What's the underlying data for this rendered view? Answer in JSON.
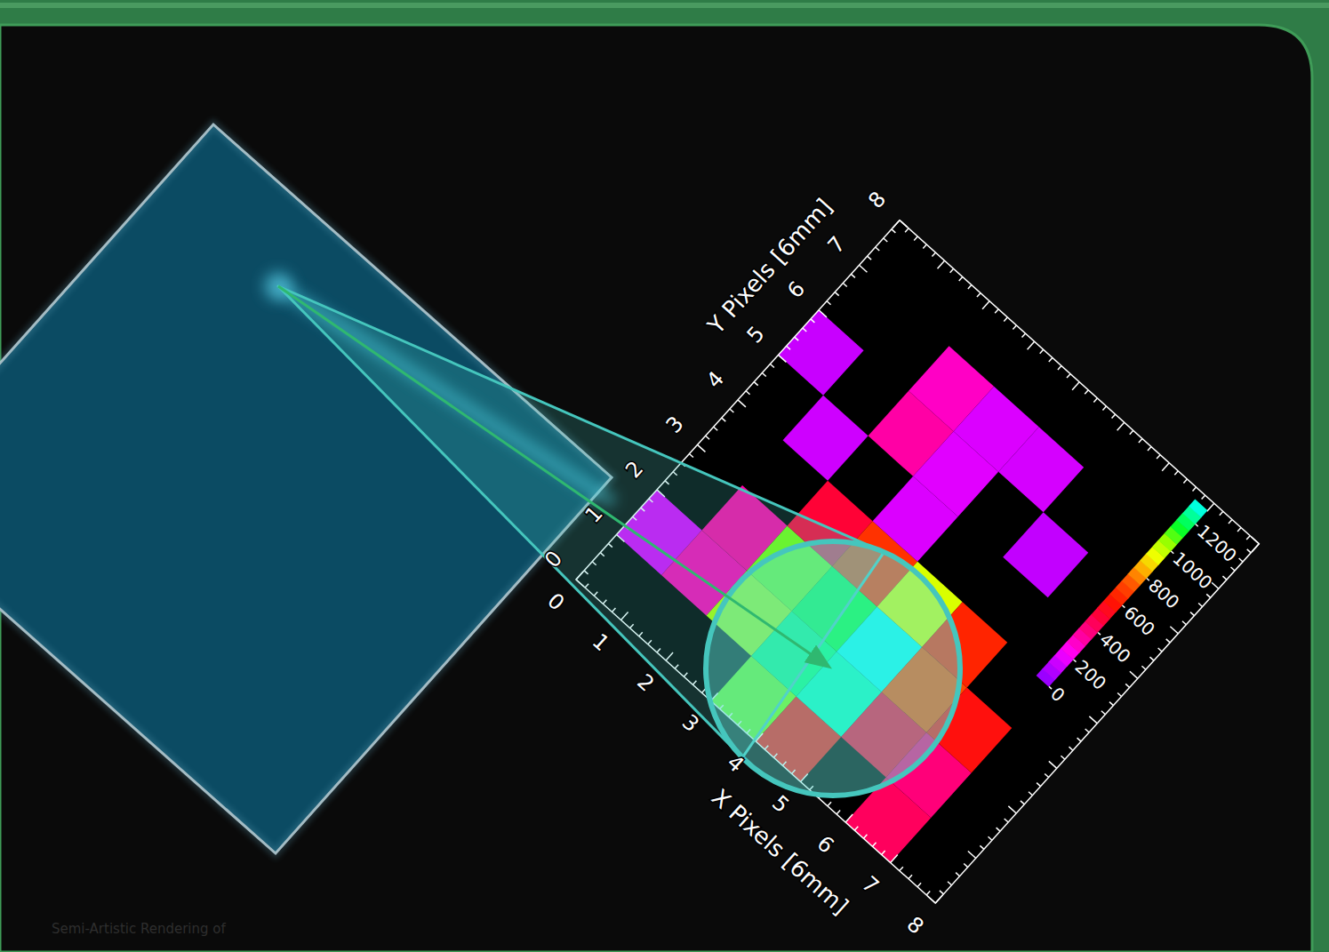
{
  "chart_data": {
    "type": "heatmap",
    "x_label": "X Pixels [6mm]",
    "y_label": "Y Pixels [6mm]",
    "annotations": [
      "Semi-Artistic Rendering of"
    ],
    "xlim": [
      0,
      8
    ],
    "ylim": [
      0,
      8
    ],
    "xticks": [
      0,
      1,
      2,
      3,
      4,
      5,
      6,
      7,
      8
    ],
    "yticks": [
      0,
      1,
      2,
      3,
      4,
      5,
      6,
      7,
      8
    ],
    "cells": [
      [
        null,
        null,
        null,
        1050,
        560,
        null,
        420,
        null
      ],
      [
        150,
        300,
        1000,
        1200,
        1250,
        480,
        380,
        null
      ],
      [
        null,
        320,
        1050,
        1150,
        1290,
        700,
        560,
        null
      ],
      [
        null,
        null,
        480,
        650,
        950,
        620,
        null,
        null
      ],
      [
        null,
        130,
        null,
        150,
        null,
        null,
        null,
        null
      ],
      [
        120,
        null,
        320,
        160,
        null,
        110,
        null,
        null
      ],
      [
        null,
        null,
        280,
        150,
        140,
        null,
        null,
        null
      ],
      [
        null,
        null,
        null,
        null,
        null,
        null,
        null,
        null
      ]
    ],
    "colorbar": {
      "range": [
        0,
        1300
      ],
      "ticks": [
        0,
        200,
        400,
        600,
        800,
        1000,
        1200
      ]
    }
  }
}
